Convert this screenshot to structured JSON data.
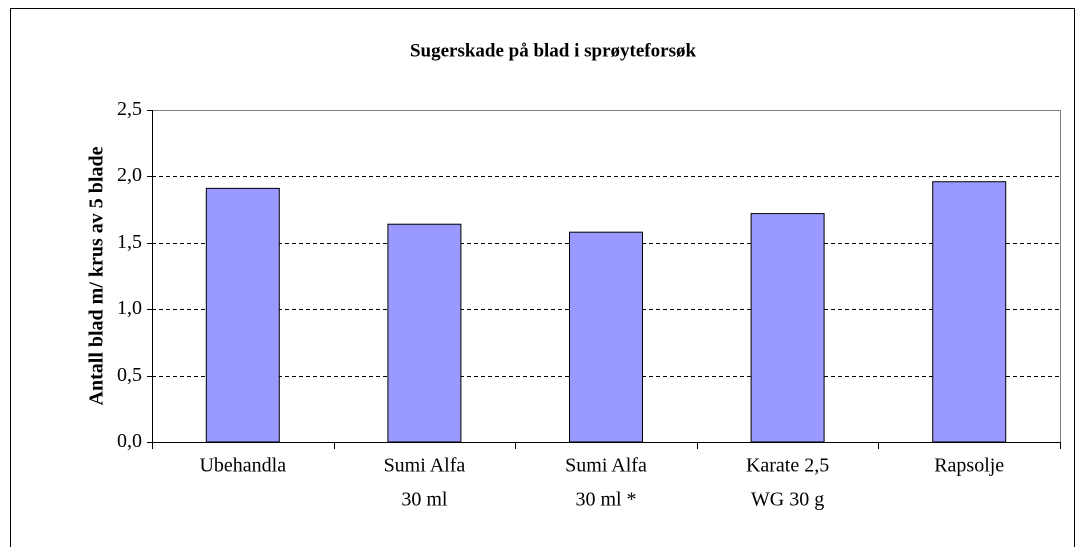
{
  "chart_data": {
    "type": "bar",
    "title": "Sugerskade på blad i sprøyteforsøk",
    "y_label": "Antall blad m/ krus av 5 blade",
    "categories": [
      [
        "Ubehandla"
      ],
      [
        "Sumi Alfa",
        "30 ml"
      ],
      [
        "Sumi Alfa",
        "30 ml *"
      ],
      [
        "Karate 2,5",
        "WG  30 g"
      ],
      [
        "Rapsolje"
      ]
    ],
    "values": [
      1.91,
      1.64,
      1.58,
      1.72,
      1.96
    ],
    "color": "#9999ff",
    "ylim": [
      0,
      2.5
    ],
    "yticks": [
      {
        "value": 0,
        "label": "0,0"
      },
      {
        "value": 0.5,
        "label": "0,5"
      },
      {
        "value": 1,
        "label": "1,0"
      },
      {
        "value": 1.5,
        "label": "1,5"
      },
      {
        "value": 2,
        "label": "2,0"
      },
      {
        "value": 2.5,
        "label": "2,5"
      }
    ],
    "grid": true
  }
}
